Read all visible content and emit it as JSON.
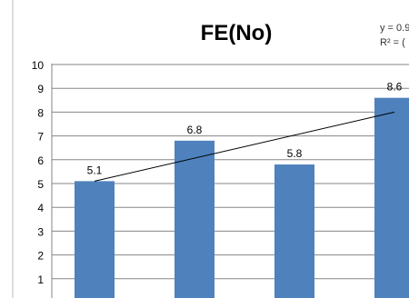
{
  "chart_data": {
    "type": "bar",
    "title": "FE(No)",
    "categories": [
      "",
      "",
      "",
      ""
    ],
    "values": [
      5.1,
      6.8,
      5.8,
      8.6
    ],
    "data_labels": [
      "5.1",
      "6.8",
      "5.8",
      "8.6"
    ],
    "ylim": [
      0,
      10
    ],
    "yticks": [
      "1",
      "2",
      "3",
      "4",
      "5",
      "6",
      "7",
      "8",
      "9",
      "10"
    ],
    "grid": true,
    "bar_color": "#4f81bd",
    "trendline": {
      "from": {
        "category": 1,
        "value": 5.1
      },
      "to": {
        "category": 4,
        "value": 8.0
      },
      "color": "#000000"
    },
    "trendline_equation": "y = 0.9",
    "r_squared_label": "R² = ("
  }
}
